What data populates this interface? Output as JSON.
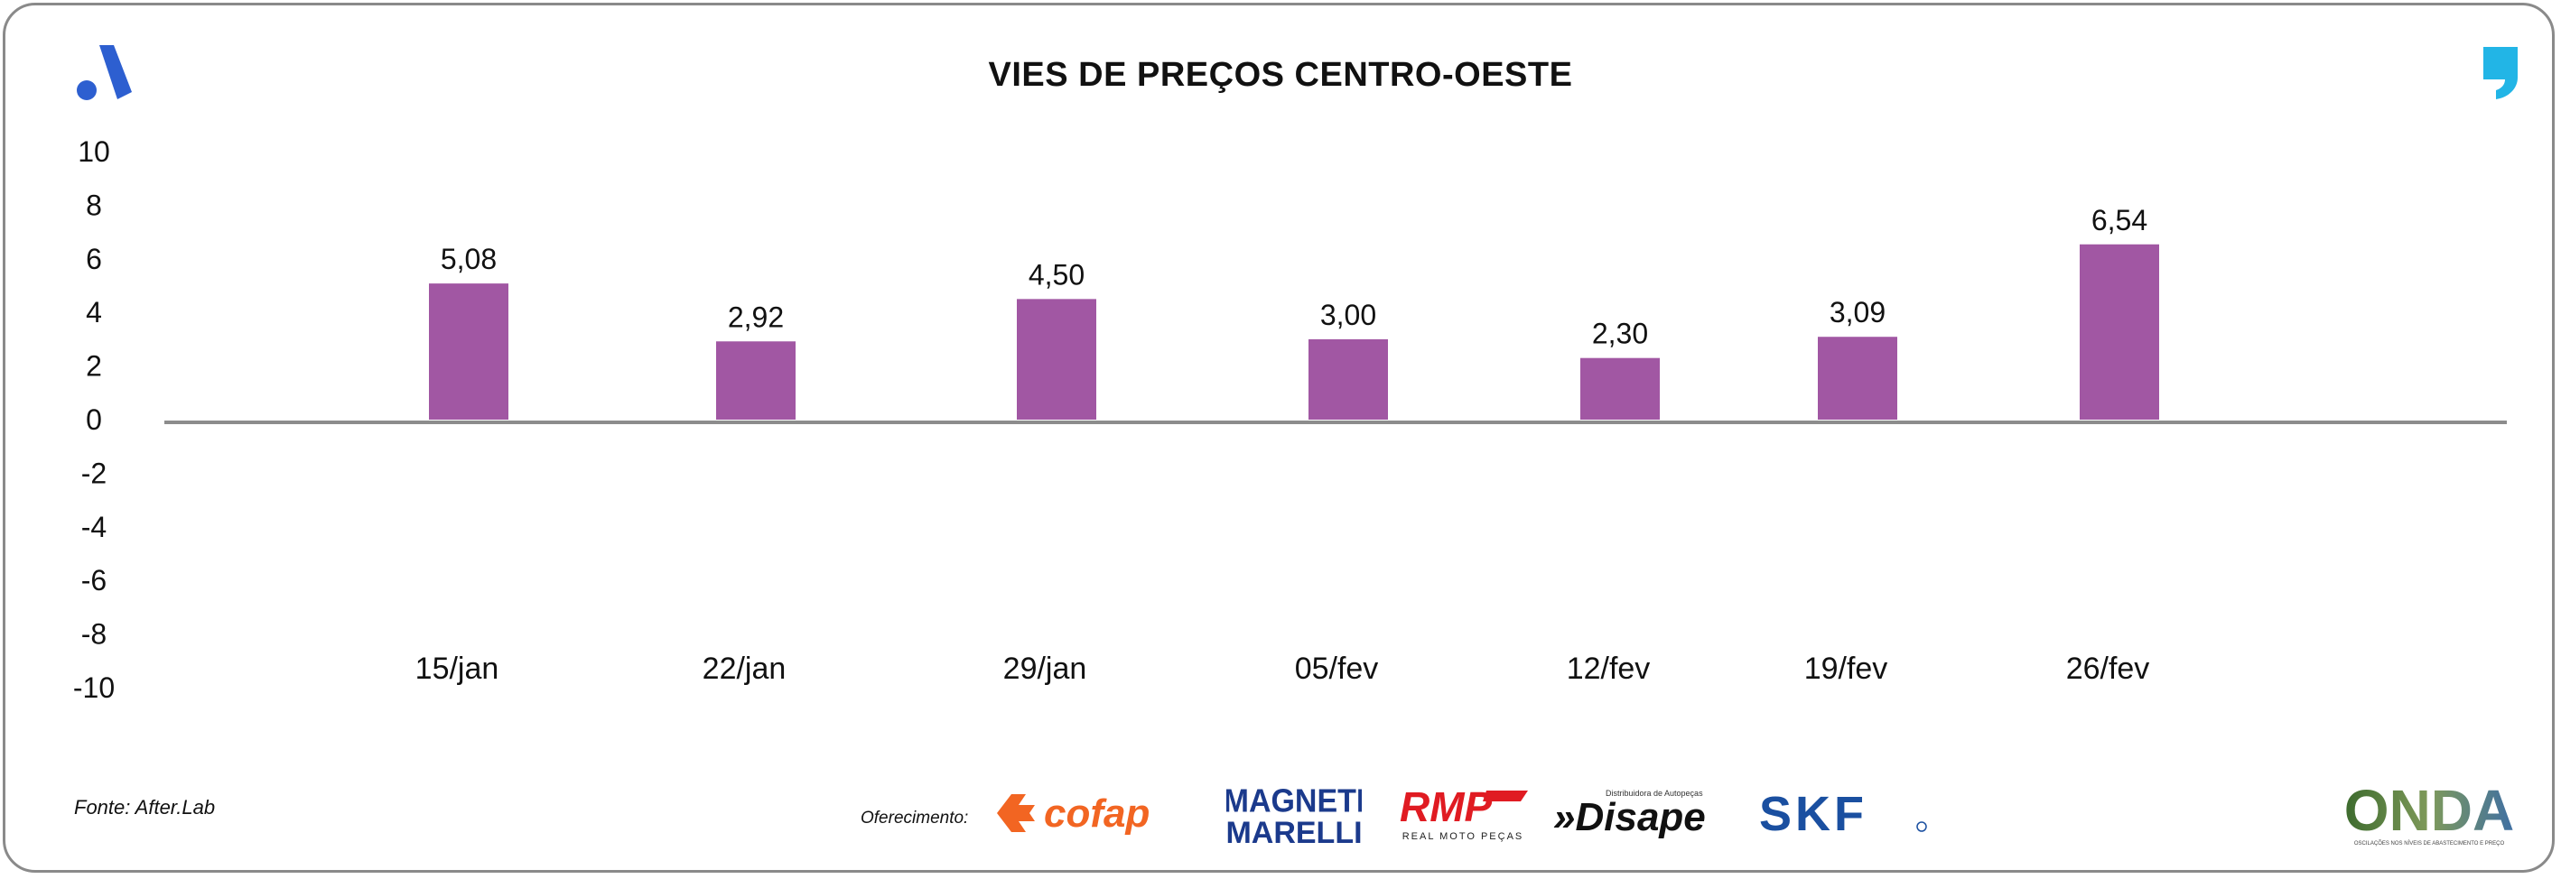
{
  "title": "VIES DE PREÇOS CENTRO-OESTE",
  "source": "Fonte: After.Lab",
  "sponsor_label": "Oferecimento:",
  "sponsors": [
    {
      "name": "cofap",
      "color": "#f26522"
    },
    {
      "name": "MAGNETI MARELLI",
      "color": "#1b3a8c"
    },
    {
      "name": "RMP",
      "sub": "REAL MOTO PEÇAS",
      "color": "#e01b22"
    },
    {
      "name": "Disape",
      "sub": "Distribuidora de Autopeças",
      "color": "#111111"
    },
    {
      "name": "SKF",
      "color": "#1a4fa0"
    },
    {
      "name": "ONDA",
      "sub": "OSCILAÇÕES NOS NÍVEIS DE ABASTECIMENTO E PREÇO",
      "color": "#4a7a3a"
    }
  ],
  "icons": [
    "afterlab-logo-icon",
    "quote-mark-icon"
  ],
  "colors": {
    "bar": "#a157a3",
    "axis": "#8c8c8c",
    "frame": "#8a8a8a",
    "accent_blue": "#2d5fd0",
    "accent_cyan": "#22b5e6"
  },
  "chart_data": {
    "type": "bar",
    "title": "VIES DE PREÇOS CENTRO-OESTE",
    "categories": [
      "15/jan",
      "22/jan",
      "29/jan",
      "05/fev",
      "12/fev",
      "19/fev",
      "26/fev"
    ],
    "values": [
      5.08,
      2.92,
      4.5,
      3.0,
      2.3,
      3.09,
      6.54
    ],
    "value_labels": [
      "5,08",
      "2,92",
      "4,50",
      "3,00",
      "2,30",
      "3,09",
      "6,54"
    ],
    "ylim": [
      -10,
      10
    ],
    "yticks": [
      "10",
      "8",
      "6",
      "4",
      "2",
      "0",
      "-2",
      "-4",
      "-6",
      "-8",
      "-10"
    ],
    "grid": false,
    "legend": "none"
  }
}
